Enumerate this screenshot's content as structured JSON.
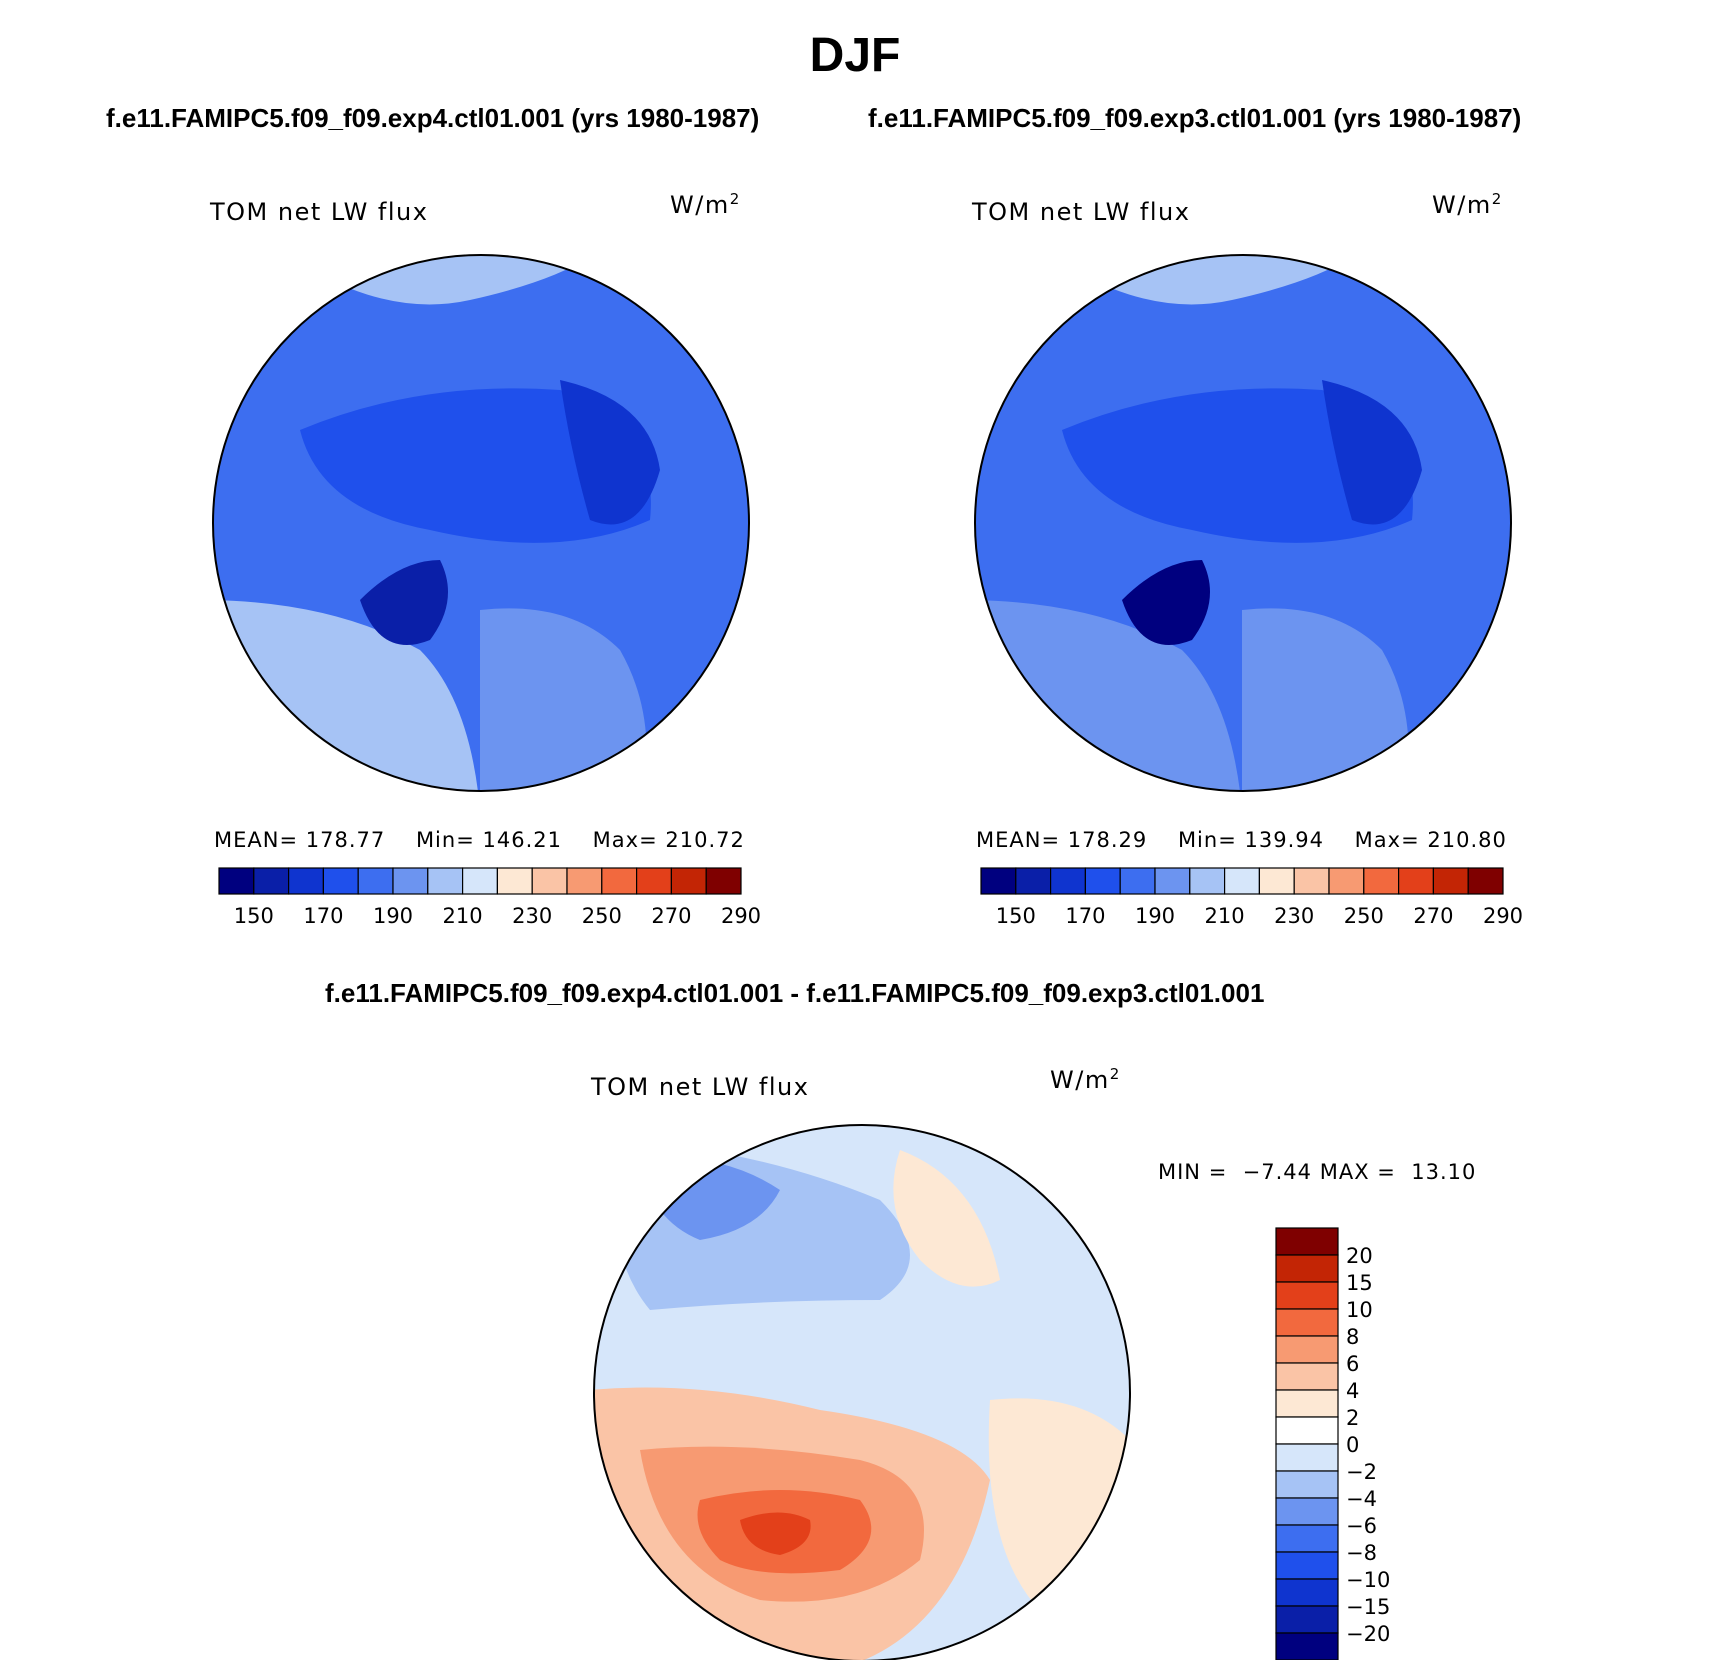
{
  "title": "DJF",
  "subtitles": {
    "left": "f.e11.FAMIPC5.f09_f09.exp4.ctl01.001 (yrs 1980-1987)",
    "right": "f.e11.FAMIPC5.f09_f09.exp3.ctl01.001 (yrs 1980-1987)",
    "diff": "f.e11.FAMIPC5.f09_f09.exp4.ctl01.001 - f.e11.FAMIPC5.f09_f09.exp3.ctl01.001"
  },
  "chart_data": [
    {
      "type": "heatmap",
      "panel": "exp4",
      "variable": "TOM net LW flux",
      "units": "W/m",
      "units_sup": "2",
      "stats": {
        "mean_label": "MEAN=",
        "mean": "178.77",
        "min_label": "Min=",
        "min": "146.21",
        "max_label": "Max=",
        "max": "210.72"
      },
      "colorbar": {
        "levels": [
          150,
          160,
          170,
          180,
          190,
          200,
          210,
          220,
          230,
          240,
          250,
          260,
          270,
          280,
          290
        ],
        "tick_labels": [
          "150",
          "170",
          "190",
          "210",
          "230",
          "250",
          "270",
          "290"
        ],
        "colors": [
          "#00007f",
          "#0a1fa8",
          "#0f34cf",
          "#1f50ec",
          "#3d6ef0",
          "#6c94f0",
          "#a6c3f5",
          "#d6e6fa",
          "#fde8d4",
          "#fac4a6",
          "#f79a72",
          "#f2693e",
          "#e3401a",
          "#c32505",
          "#7f0000"
        ]
      }
    },
    {
      "type": "heatmap",
      "panel": "exp3",
      "variable": "TOM net LW flux",
      "units": "W/m",
      "units_sup": "2",
      "stats": {
        "mean_label": "MEAN=",
        "mean": "178.29",
        "min_label": "Min=",
        "min": "139.94",
        "max_label": "Max=",
        "max": "210.80"
      },
      "colorbar": {
        "levels": [
          150,
          160,
          170,
          180,
          190,
          200,
          210,
          220,
          230,
          240,
          250,
          260,
          270,
          280,
          290
        ],
        "tick_labels": [
          "150",
          "170",
          "190",
          "210",
          "230",
          "250",
          "270",
          "290"
        ],
        "colors": [
          "#00007f",
          "#0a1fa8",
          "#0f34cf",
          "#1f50ec",
          "#3d6ef0",
          "#6c94f0",
          "#a6c3f5",
          "#d6e6fa",
          "#fde8d4",
          "#fac4a6",
          "#f79a72",
          "#f2693e",
          "#e3401a",
          "#c32505",
          "#7f0000"
        ]
      }
    },
    {
      "type": "heatmap",
      "panel": "difference",
      "variable": "TOM net LW flux",
      "units": "W/m",
      "units_sup": "2",
      "stats": {
        "min_label": "MIN =",
        "min": "−7.44",
        "max_label": "MAX =",
        "max": "13.10"
      },
      "colorbar": {
        "tick_labels": [
          "20",
          "15",
          "10",
          "8",
          "6",
          "4",
          "2",
          "0",
          "−2",
          "−4",
          "−6",
          "−8",
          "−10",
          "−15",
          "−20"
        ],
        "colors": [
          "#7f0000",
          "#c32505",
          "#e3401a",
          "#f2693e",
          "#f79a72",
          "#fac4a6",
          "#fde8d4",
          "#ffffff",
          "#d6e6fa",
          "#a6c3f5",
          "#6c94f0",
          "#3d6ef0",
          "#1f50ec",
          "#0f34cf",
          "#0a1fa8",
          "#00007f"
        ]
      }
    }
  ]
}
